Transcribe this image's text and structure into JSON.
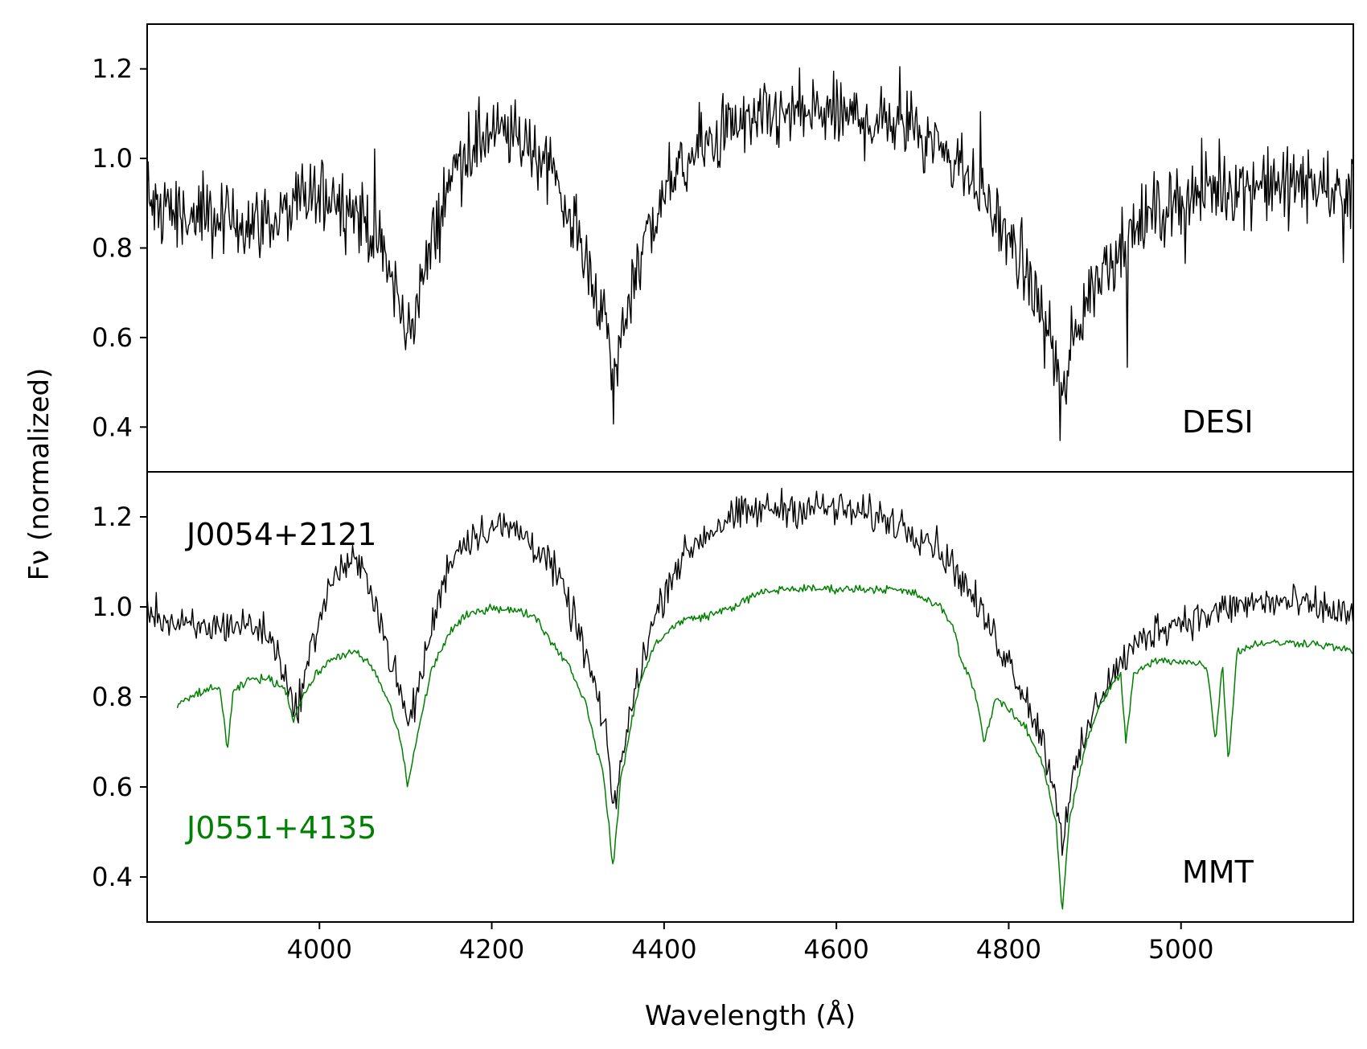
{
  "chart_data": {
    "type": "line",
    "xlabel": "Wavelength (Å)",
    "ylabel": "Fν (normalized)",
    "xlim": [
      3800,
      5200
    ],
    "x_ticks": [
      4000,
      4200,
      4400,
      4600,
      4800,
      5000
    ],
    "grid": false,
    "panels": [
      {
        "label": "DESI",
        "ylim": [
          0.3,
          1.3
        ],
        "y_ticks": [
          0.4,
          0.6,
          0.8,
          1.0,
          1.2
        ],
        "series": [
          {
            "name": "J0054+2121",
            "color": "#000000",
            "x": [
              3800,
              3830,
              3860,
              3890,
              3920,
              3950,
              3970,
              3990,
              4010,
              4030,
              4050,
              4070,
              4090,
              4100,
              4110,
              4130,
              4150,
              4170,
              4190,
              4210,
              4230,
              4260,
              4280,
              4300,
              4320,
              4335,
              4341,
              4350,
              4370,
              4390,
              4410,
              4440,
              4470,
              4500,
              4530,
              4560,
              4590,
              4620,
              4650,
              4680,
              4710,
              4740,
              4770,
              4800,
              4820,
              4840,
              4855,
              4862,
              4870,
              4890,
              4910,
              4940,
              4970,
              5000,
              5030,
              5060,
              5090,
              5120,
              5150,
              5180,
              5200
            ],
            "y": [
              0.92,
              0.88,
              0.86,
              0.86,
              0.86,
              0.86,
              0.89,
              0.92,
              0.92,
              0.9,
              0.87,
              0.8,
              0.7,
              0.6,
              0.66,
              0.8,
              0.95,
              1.02,
              1.05,
              1.05,
              1.05,
              1.0,
              0.92,
              0.82,
              0.72,
              0.6,
              0.48,
              0.6,
              0.78,
              0.87,
              0.95,
              1.02,
              1.06,
              1.08,
              1.09,
              1.1,
              1.1,
              1.09,
              1.08,
              1.07,
              1.05,
              1.0,
              0.92,
              0.82,
              0.74,
              0.65,
              0.55,
              0.43,
              0.55,
              0.68,
              0.76,
              0.83,
              0.88,
              0.91,
              0.93,
              0.94,
              0.94,
              0.94,
              0.94,
              0.93,
              0.92
            ],
            "noise": 0.07
          }
        ]
      },
      {
        "label": "MMT",
        "ylim": [
          0.3,
          1.3
        ],
        "y_ticks": [
          0.4,
          0.6,
          0.8,
          1.0,
          1.2
        ],
        "series": [
          {
            "name": "J0054+2121",
            "color": "#000000",
            "x": [
              3800,
              3830,
              3860,
              3890,
              3920,
              3940,
              3960,
              3970,
              3980,
              4000,
              4020,
              4040,
              4060,
              4080,
              4095,
              4102,
              4110,
              4130,
              4150,
              4170,
              4200,
              4230,
              4260,
              4280,
              4300,
              4320,
              4335,
              4341,
              4350,
              4370,
              4390,
              4410,
              4440,
              4470,
              4500,
              4530,
              4560,
              4590,
              4620,
              4650,
              4680,
              4710,
              4740,
              4770,
              4800,
              4820,
              4840,
              4855,
              4862,
              4870,
              4890,
              4910,
              4940,
              4970,
              5000,
              5030,
              5060,
              5090,
              5120,
              5150,
              5180,
              5200
            ],
            "y": [
              1.0,
              0.96,
              0.95,
              0.96,
              0.96,
              0.94,
              0.86,
              0.76,
              0.82,
              0.98,
              1.08,
              1.1,
              1.05,
              0.9,
              0.8,
              0.74,
              0.78,
              0.95,
              1.1,
              1.15,
              1.18,
              1.17,
              1.12,
              1.05,
              0.95,
              0.82,
              0.68,
              0.55,
              0.65,
              0.85,
              0.98,
              1.08,
              1.15,
              1.19,
              1.21,
              1.22,
              1.22,
              1.22,
              1.21,
              1.2,
              1.18,
              1.15,
              1.08,
              0.98,
              0.88,
              0.8,
              0.7,
              0.58,
              0.48,
              0.58,
              0.72,
              0.82,
              0.9,
              0.95,
              0.97,
              0.98,
              1.0,
              1.01,
              1.01,
              1.0,
              0.99,
              0.98
            ],
            "noise": 0.035
          },
          {
            "name": "J0551+4135",
            "color": "#008000",
            "x": [
              3835,
              3860,
              3885,
              3893,
              3900,
              3920,
              3940,
              3960,
              3970,
              3980,
              4000,
              4020,
              4040,
              4060,
              4080,
              4095,
              4102,
              4110,
              4130,
              4150,
              4170,
              4200,
              4230,
              4250,
              4270,
              4290,
              4310,
              4330,
              4341,
              4350,
              4370,
              4390,
              4420,
              4450,
              4480,
              4510,
              4540,
              4570,
              4600,
              4630,
              4660,
              4690,
              4720,
              4735,
              4745,
              4760,
              4772,
              4785,
              4800,
              4820,
              4840,
              4855,
              4862,
              4870,
              4890,
              4910,
              4930,
              4936,
              4945,
              4970,
              5000,
              5030,
              5040,
              5048,
              5055,
              5065,
              5090,
              5120,
              5150,
              5180,
              5200
            ],
            "y": [
              0.78,
              0.81,
              0.82,
              0.68,
              0.81,
              0.84,
              0.84,
              0.82,
              0.75,
              0.8,
              0.86,
              0.89,
              0.9,
              0.87,
              0.79,
              0.7,
              0.6,
              0.68,
              0.86,
              0.94,
              0.98,
              1.0,
              0.99,
              0.98,
              0.92,
              0.87,
              0.78,
              0.62,
              0.42,
              0.62,
              0.82,
              0.92,
              0.97,
              0.98,
              1.0,
              1.03,
              1.04,
              1.04,
              1.04,
              1.04,
              1.04,
              1.03,
              1.0,
              0.96,
              0.88,
              0.82,
              0.7,
              0.8,
              0.77,
              0.73,
              0.65,
              0.52,
              0.32,
              0.52,
              0.7,
              0.8,
              0.85,
              0.7,
              0.85,
              0.88,
              0.88,
              0.87,
              0.7,
              0.88,
              0.65,
              0.9,
              0.92,
              0.92,
              0.92,
              0.91,
              0.9
            ],
            "noise": 0.008
          }
        ],
        "annotations": [
          {
            "text": "J0054+2121",
            "color": "#000000"
          },
          {
            "text": "J0551+4135",
            "color": "#008000"
          }
        ]
      }
    ]
  }
}
